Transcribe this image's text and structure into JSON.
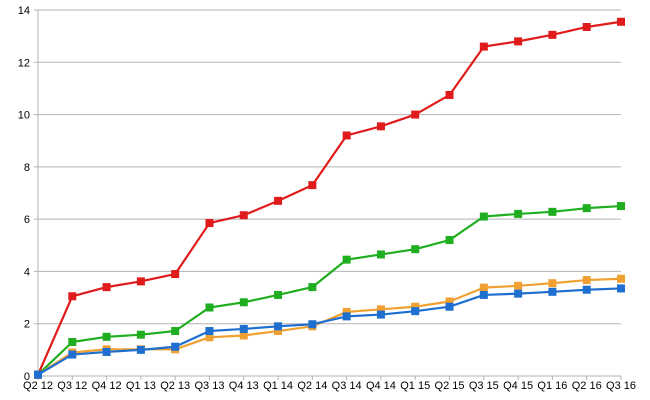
{
  "chart_data": {
    "type": "line",
    "title": "",
    "xlabel": "",
    "ylabel": "",
    "categories": [
      "Q2 12",
      "Q3 12",
      "Q4 12",
      "Q1 13",
      "Q2 13",
      "Q3 13",
      "Q4 13",
      "Q1 14",
      "Q2 14",
      "Q3 14",
      "Q4 14",
      "Q1 15",
      "Q2 15",
      "Q3 15",
      "Q4 15",
      "Q1 16",
      "Q2 16",
      "Q3 16"
    ],
    "ylim": [
      0,
      14
    ],
    "yticks": [
      0,
      2,
      4,
      6,
      8,
      10,
      12,
      14
    ],
    "grid": true,
    "legend": "none",
    "series": [
      {
        "color": "#e01b1b",
        "values": [
          0.05,
          3.05,
          3.4,
          3.62,
          3.9,
          5.85,
          6.15,
          6.7,
          7.3,
          9.2,
          9.55,
          10.0,
          10.75,
          12.6,
          12.8,
          13.05,
          13.35,
          13.55
        ]
      },
      {
        "color": "#1fae1f",
        "values": [
          0.05,
          1.3,
          1.5,
          1.58,
          1.72,
          2.62,
          2.82,
          3.1,
          3.4,
          4.45,
          4.65,
          4.85,
          5.2,
          6.1,
          6.2,
          6.28,
          6.42,
          6.5
        ]
      },
      {
        "color": "#f0a030",
        "values": [
          0.05,
          0.9,
          1.02,
          1.02,
          1.02,
          1.48,
          1.55,
          1.72,
          1.9,
          2.45,
          2.55,
          2.65,
          2.85,
          3.38,
          3.45,
          3.55,
          3.67,
          3.72
        ]
      },
      {
        "color": "#1e6fd0",
        "values": [
          0.05,
          0.82,
          0.92,
          1.0,
          1.12,
          1.72,
          1.8,
          1.9,
          1.98,
          2.28,
          2.35,
          2.48,
          2.65,
          3.1,
          3.15,
          3.22,
          3.3,
          3.35
        ]
      }
    ]
  }
}
